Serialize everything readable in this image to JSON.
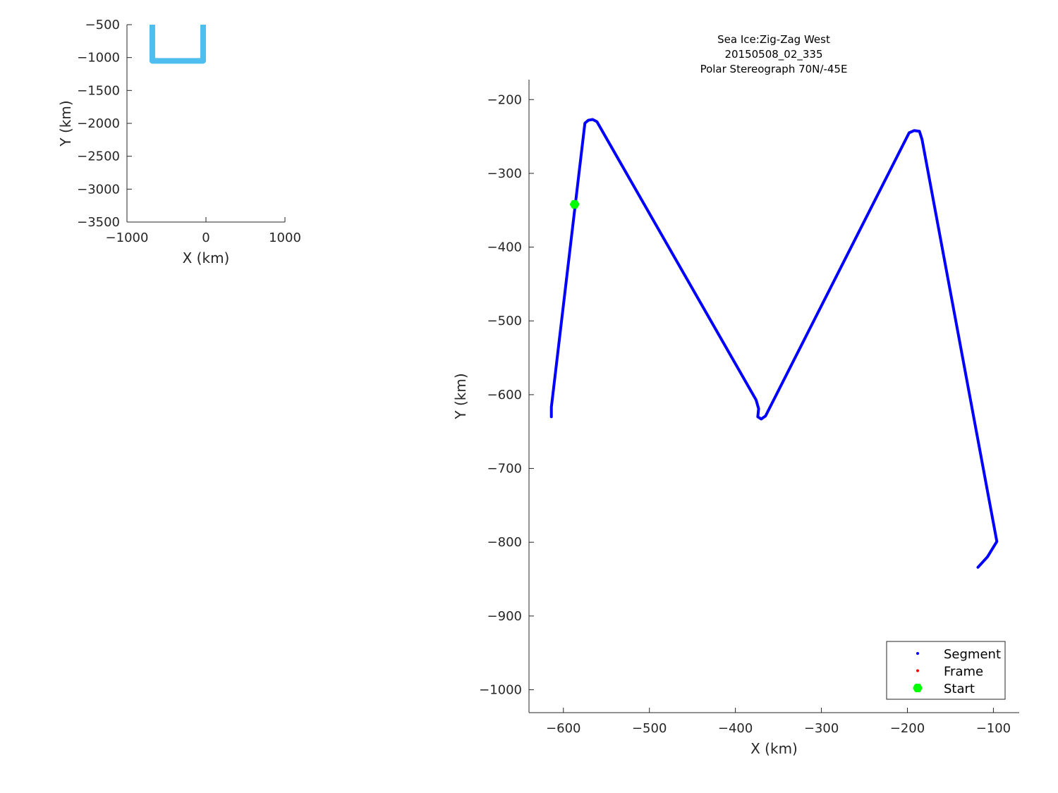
{
  "chart_data": [
    {
      "type": "line",
      "role": "inset-overview",
      "xlabel": "X (km)",
      "ylabel": "Y (km)",
      "xlim": [
        -1000,
        1000
      ],
      "ylim": [
        -3500,
        -500
      ],
      "xticks": [
        -1000,
        0,
        1000
      ],
      "yticks": [
        -3500,
        -3000,
        -2500,
        -2000,
        -1500,
        -1000,
        -500
      ],
      "grid": false,
      "series": [
        {
          "color": "#4DBEEE",
          "x": [
            -679,
            -679,
            -36,
            -36
          ],
          "y": [
            -500,
            -1050,
            -1050,
            -500
          ]
        }
      ]
    },
    {
      "type": "line",
      "title": [
        "Sea Ice:Zig-Zag West",
        "20150508_02_335",
        "Polar Stereograph 70N/-45E"
      ],
      "xlabel": "X (km)",
      "ylabel": "Y (km)",
      "xlim": [
        -640,
        -70
      ],
      "ylim": [
        -1031,
        -173
      ],
      "xticks": [
        -600,
        -500,
        -400,
        -300,
        -200,
        -100
      ],
      "yticks": [
        -1000,
        -900,
        -800,
        -700,
        -600,
        -500,
        -400,
        -300,
        -200
      ],
      "grid": false,
      "legend_position": "bottom-right",
      "legend": [
        {
          "name": "Segment",
          "color": "#0000FF",
          "marker": "dot"
        },
        {
          "name": "Frame",
          "color": "#FF0000",
          "marker": "dot"
        },
        {
          "name": "Start",
          "color": "#00FF00",
          "marker": "hexagram"
        }
      ],
      "series": [
        {
          "name": "Segment",
          "color": "#0000FF",
          "x": [
            -614,
            -614,
            -575,
            -571,
            -566,
            -561,
            -376,
            -373,
            -374,
            -370,
            -365,
            -198,
            -192,
            -186,
            -183,
            -96,
            -107,
            -118
          ],
          "y": [
            -630,
            -617,
            -232,
            -228,
            -227,
            -230,
            -607,
            -619,
            -630,
            -633,
            -629,
            -245,
            -242,
            -243,
            -254,
            -799,
            -820,
            -834
          ]
        },
        {
          "name": "Start",
          "color": "#00FF00",
          "x": [
            -587
          ],
          "y": [
            -342
          ]
        }
      ]
    }
  ]
}
